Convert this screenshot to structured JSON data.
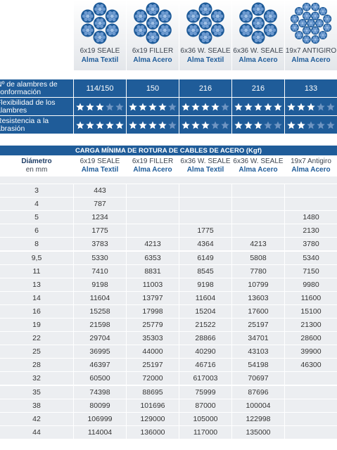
{
  "cables": [
    {
      "name": "6x19 SEALE",
      "core": "Alma Textil"
    },
    {
      "name": "6x19 FILLER",
      "core": "Alma Acero"
    },
    {
      "name": "6x36 W. SEALE",
      "core": "Alma Textil"
    },
    {
      "name": "6x36 W. SEALE",
      "core": "Alma Acero"
    },
    {
      "name": "19x7 ANTIGIRO",
      "core": "Alma Acero"
    }
  ],
  "specs": {
    "wires": {
      "label": "Nº de alambres de conformación",
      "values": [
        "114/150",
        "150",
        "216",
        "216",
        "133"
      ]
    },
    "flexibility": {
      "label": "Flexibilidad de los alambres",
      "ratings": [
        3,
        4,
        4,
        5,
        3
      ]
    },
    "abrasion": {
      "label": "Resistencia a la abrasión",
      "ratings": [
        5,
        4,
        3,
        3,
        2
      ]
    }
  },
  "table": {
    "title": "CARGA MÍNIMA DE ROTURA DE CABLES DE ACERO (Kgf)",
    "header": {
      "diameter": "Diámetro",
      "unit": "en mm",
      "columns": [
        {
          "name": "6x19 SEALE",
          "core": "Alma Textil"
        },
        {
          "name": "6x19 FILLER",
          "core": "Alma Acero"
        },
        {
          "name": "6x36 W. SEALE",
          "core": "Alma Textil"
        },
        {
          "name": "6x36 W. SEALE",
          "core": "Alma Acero"
        },
        {
          "name": "19x7 Antigiro",
          "core": "Alma Acero"
        }
      ]
    },
    "rows": [
      [
        "3",
        "443",
        null,
        null,
        null,
        null
      ],
      [
        "4",
        "787",
        null,
        null,
        null,
        null
      ],
      [
        "5",
        "1234",
        null,
        null,
        null,
        "1480"
      ],
      [
        "6",
        "1775",
        null,
        "1775",
        null,
        "2130"
      ],
      [
        "8",
        "3783",
        "4213",
        "4364",
        "4213",
        "3780"
      ],
      [
        "9,5",
        "5330",
        "6353",
        "6149",
        "5808",
        "5340"
      ],
      [
        "11",
        "7410",
        "8831",
        "8545",
        "7780",
        "7150"
      ],
      [
        "13",
        "9198",
        "11003",
        "9198",
        "10799",
        "9980"
      ],
      [
        "14",
        "11604",
        "13797",
        "11604",
        "13603",
        "11600"
      ],
      [
        "16",
        "15258",
        "17998",
        "15204",
        "17600",
        "15100"
      ],
      [
        "19",
        "21598",
        "25779",
        "21522",
        "25197",
        "21300"
      ],
      [
        "22",
        "29704",
        "35303",
        "28866",
        "34701",
        "28600"
      ],
      [
        "25",
        "36995",
        "44000",
        "40290",
        "43103",
        "39900"
      ],
      [
        "28",
        "46397",
        "25197",
        "46716",
        "54198",
        "46300"
      ],
      [
        "32",
        "60500",
        "72000",
        "617003",
        "70697",
        null
      ],
      [
        "35",
        "74398",
        "88695",
        "75999",
        "87696",
        null
      ],
      [
        "38",
        "80099",
        "101696",
        "87000",
        "100004",
        null
      ],
      [
        "42",
        "106999",
        "129000",
        "105000",
        "122998",
        null
      ],
      [
        "44",
        "114004",
        "136000",
        "117000",
        "135000",
        null
      ]
    ]
  }
}
